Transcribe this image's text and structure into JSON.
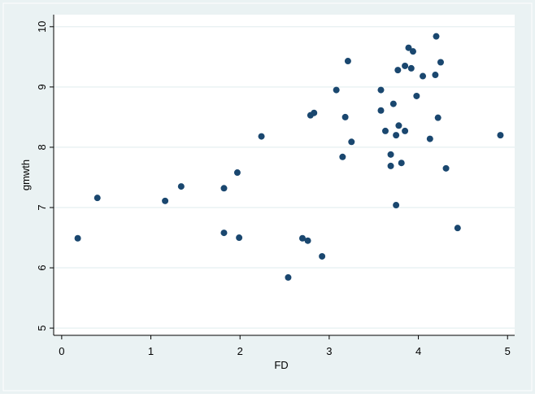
{
  "chart_data": {
    "type": "scatter",
    "x_label": "FD",
    "y_label": "gmwth",
    "x": [
      0.18,
      0.4,
      1.16,
      1.34,
      1.82,
      1.82,
      1.97,
      1.99,
      2.24,
      2.54,
      2.7,
      2.76,
      2.79,
      2.83,
      2.92,
      3.08,
      3.15,
      3.18,
      3.21,
      3.25,
      3.58,
      3.58,
      3.63,
      3.69,
      3.69,
      3.72,
      3.75,
      3.75,
      3.77,
      3.78,
      3.81,
      3.85,
      3.85,
      3.89,
      3.92,
      3.94,
      3.98,
      4.05,
      4.13,
      4.19,
      4.2,
      4.22,
      4.25,
      4.31,
      4.44,
      4.92
    ],
    "series": [
      {
        "color": "#1a476f",
        "values": [
          6.49,
          7.16,
          7.11,
          7.35,
          7.32,
          6.58,
          7.58,
          6.5,
          8.18,
          5.84,
          6.49,
          6.45,
          8.53,
          8.57,
          6.19,
          8.95,
          7.84,
          8.5,
          9.43,
          8.09,
          8.95,
          8.61,
          8.27,
          7.88,
          7.69,
          8.72,
          8.2,
          7.04,
          9.28,
          8.36,
          7.74,
          9.35,
          8.27,
          9.65,
          9.31,
          9.59,
          8.85,
          9.18,
          8.14,
          9.2,
          9.84,
          8.49,
          9.41,
          7.65,
          6.66,
          8.2
        ]
      }
    ],
    "xlim": [
      -0.09,
      5.08
    ],
    "xticks": [
      0,
      1,
      2,
      3,
      4,
      5
    ],
    "ylim": [
      4.88,
      10.2
    ],
    "yticks": [
      5,
      6,
      7,
      8,
      9,
      10
    ],
    "grid": true
  }
}
